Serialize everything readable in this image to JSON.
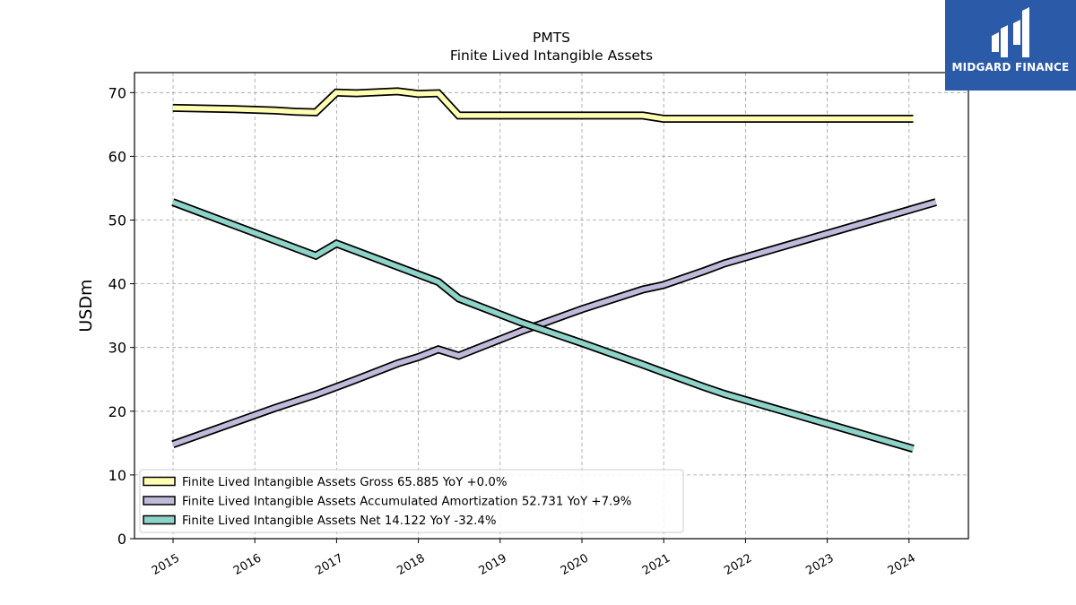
{
  "logo": {
    "text": "MIDGARD FINANCE",
    "background": "#2a5aa8"
  },
  "chart_data": {
    "type": "line",
    "title": "PMTS",
    "subtitle": "Finite Lived Intangible Assets",
    "ylabel": "USDm",
    "xlabel": "",
    "ylim": [
      0,
      73
    ],
    "yticks": [
      0,
      10,
      20,
      30,
      40,
      50,
      60,
      70
    ],
    "xticks": [
      "2015",
      "2016",
      "2017",
      "2018",
      "2019",
      "2020",
      "2021",
      "2022",
      "2023",
      "2024"
    ],
    "grid": true,
    "legend_position": "lower-left",
    "series": [
      {
        "name": "Finite Lived Intangible Assets Gross",
        "legend_label": "Finite Lived Intangible Assets Gross  65.885 YoY +0.0%",
        "color": "#ffffb3",
        "points": [
          [
            "2014-12-31",
            67.6
          ],
          [
            "2015-09-30",
            67.4
          ],
          [
            "2016-03-31",
            67.2
          ],
          [
            "2016-06-30",
            67.0
          ],
          [
            "2016-09-30",
            66.9
          ],
          [
            "2016-12-31",
            70.0
          ],
          [
            "2017-03-31",
            69.9
          ],
          [
            "2017-09-30",
            70.2
          ],
          [
            "2017-12-31",
            69.8
          ],
          [
            "2018-03-31",
            69.9
          ],
          [
            "2018-06-30",
            66.4
          ],
          [
            "2020-09-30",
            66.4
          ],
          [
            "2020-12-31",
            65.9
          ],
          [
            "2024-01-20",
            65.9
          ]
        ]
      },
      {
        "name": "Finite Lived Intangible Assets Accumulated Amortization",
        "legend_label": "Finite Lived Intangible Assets Accumulated Amortization  52.731 YoY +7.9%",
        "color": "#bebada",
        "points": [
          [
            "2014-12-31",
            14.8
          ],
          [
            "2016-03-31",
            20.5
          ],
          [
            "2016-09-30",
            22.6
          ],
          [
            "2017-03-31",
            25.0
          ],
          [
            "2017-09-30",
            27.5
          ],
          [
            "2018-01-01",
            28.5
          ],
          [
            "2018-03-31",
            29.7
          ],
          [
            "2018-06-30",
            28.7
          ],
          [
            "2019-03-31",
            32.5
          ],
          [
            "2019-12-31",
            36.0
          ],
          [
            "2020-09-30",
            39.1
          ],
          [
            "2020-12-31",
            39.8
          ],
          [
            "2021-06-30",
            42.0
          ],
          [
            "2021-09-30",
            43.2
          ],
          [
            "2024-04-30",
            52.8
          ]
        ]
      },
      {
        "name": "Finite Lived Intangible Assets Net",
        "legend_label": "Finite Lived Intangible Assets Net  14.122 YoY -32.4%",
        "color": "#8dd3c7",
        "points": [
          [
            "2014-12-31",
            52.8
          ],
          [
            "2015-09-30",
            49.2
          ],
          [
            "2016-09-30",
            44.4
          ],
          [
            "2016-12-31",
            46.3
          ],
          [
            "2017-09-30",
            42.7
          ],
          [
            "2018-03-31",
            40.3
          ],
          [
            "2018-06-30",
            37.7
          ],
          [
            "2019-03-31",
            34.0
          ],
          [
            "2019-12-31",
            30.7
          ],
          [
            "2020-09-30",
            27.3
          ],
          [
            "2020-12-31",
            26.1
          ],
          [
            "2021-06-30",
            23.8
          ],
          [
            "2021-09-30",
            22.7
          ],
          [
            "2024-01-20",
            14.1
          ]
        ]
      }
    ]
  }
}
